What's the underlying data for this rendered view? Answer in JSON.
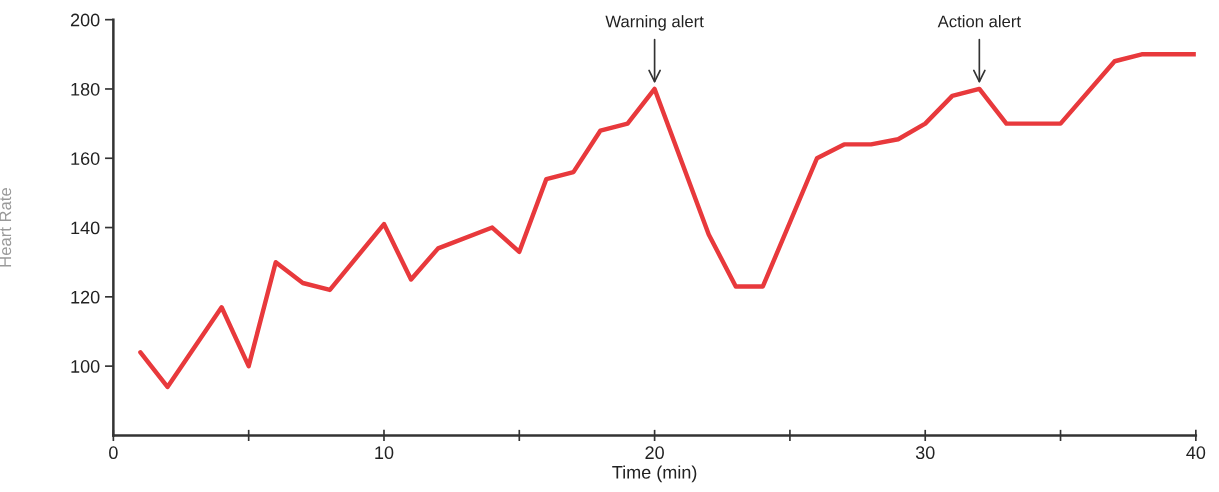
{
  "chart_data": {
    "type": "line",
    "xlabel": "Time (min)",
    "ylabel": "Heart Rate",
    "x": [
      1,
      2,
      4,
      5,
      6,
      7,
      8,
      10,
      11,
      12,
      14,
      15,
      16,
      17,
      18,
      19,
      20,
      21,
      22,
      23,
      24,
      26,
      27,
      28,
      29,
      30,
      31,
      32,
      33,
      35,
      37,
      38,
      40
    ],
    "series": [
      {
        "color": "#e8393c",
        "values": [
          104,
          94,
          117,
          100,
          130,
          124,
          122,
          141,
          125,
          134,
          140,
          133,
          154,
          156,
          168,
          170,
          180,
          159,
          138,
          123,
          123,
          160,
          164,
          164,
          165.5,
          170,
          178,
          180,
          170,
          170,
          188,
          190,
          190
        ]
      }
    ],
    "xlim": [
      0,
      40
    ],
    "xticks": [
      0,
      {
        "value": 5,
        "label": null
      },
      10,
      {
        "value": 15,
        "label": null
      },
      20,
      {
        "value": 25,
        "label": null
      },
      30,
      {
        "value": 35,
        "label": null
      },
      40
    ],
    "ylim": [
      80,
      200
    ],
    "yticks": [
      100,
      120,
      140,
      160,
      180,
      200
    ],
    "annotations": [
      {
        "text": "Warning alert",
        "x": 20,
        "y": 180
      },
      {
        "text": "Action alert",
        "x": 32,
        "y": 180
      }
    ],
    "grid": false,
    "marker": "none",
    "line_style": "solid"
  }
}
